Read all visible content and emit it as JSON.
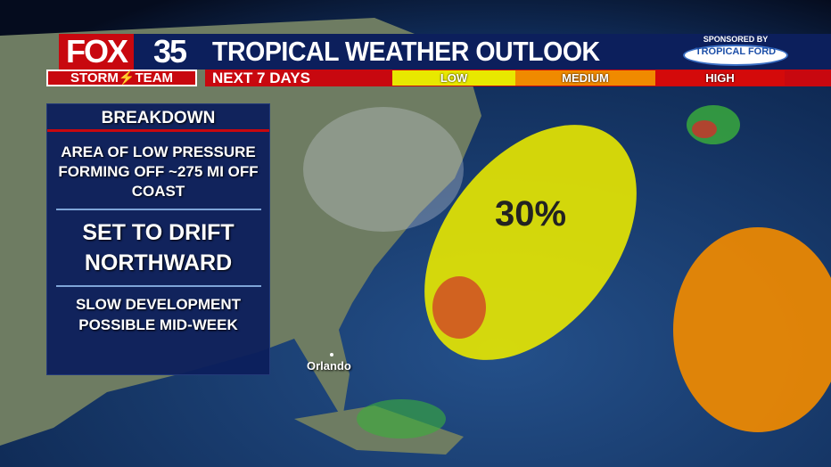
{
  "branding": {
    "logo_fox": "FOX",
    "logo_number": "35",
    "logo_team": "STORM⚡TEAM",
    "sponsor_label": "SPONSORED BY",
    "sponsor_logo": "TROPICAL FORD"
  },
  "header": {
    "title": "TROPICAL WEATHER OUTLOOK",
    "subtitle": "NEXT 7 DAYS"
  },
  "legend": [
    {
      "label": "LOW",
      "color": "#e8e800"
    },
    {
      "label": "MEDIUM",
      "color": "#f08a00"
    },
    {
      "label": "HIGH",
      "color": "#d40a0a"
    }
  ],
  "breakdown": {
    "title": "BREAKDOWN",
    "line1": "AREA OF LOW PRESSURE FORMING OFF ~275 MI OFF COAST",
    "line2": "SET TO DRIFT NORTHWARD",
    "line3": "SLOW DEVELOPMENT POSSIBLE MID-WEEK"
  },
  "map": {
    "areas": [
      {
        "chance": "30%",
        "level": "LOW",
        "color": "#e8e800"
      },
      {
        "chance": "",
        "level": "MEDIUM",
        "color": "#f08a00"
      }
    ],
    "city_label": "Orlando"
  }
}
